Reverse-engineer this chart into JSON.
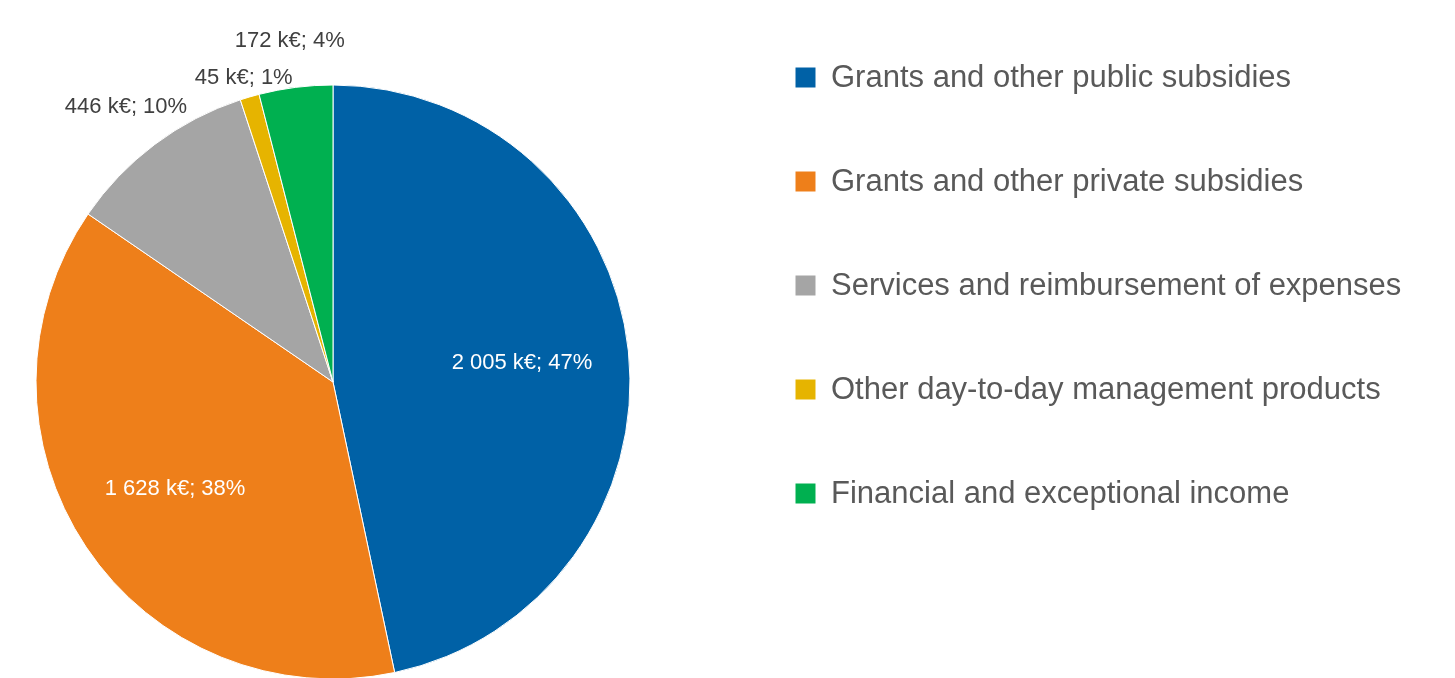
{
  "chart_data": {
    "type": "pie",
    "categories": [
      "Grants and other public subsidies",
      "Grants and other private subsidies",
      "Services and reimbursement of expenses",
      "Other day-to-day management products",
      "Financial and exceptional income"
    ],
    "values": [
      2005,
      1628,
      446,
      45,
      172
    ],
    "colors": [
      "#0061a6",
      "#ee7f1a",
      "#a5a5a5",
      "#e6b400",
      "#00b050"
    ],
    "value_labels": [
      "2 005 k€; 47%",
      "1 628 k€; 38%",
      "446 k€; 10%",
      "45 k€; 1%",
      "172 k€; 4%"
    ],
    "legend": "right"
  }
}
